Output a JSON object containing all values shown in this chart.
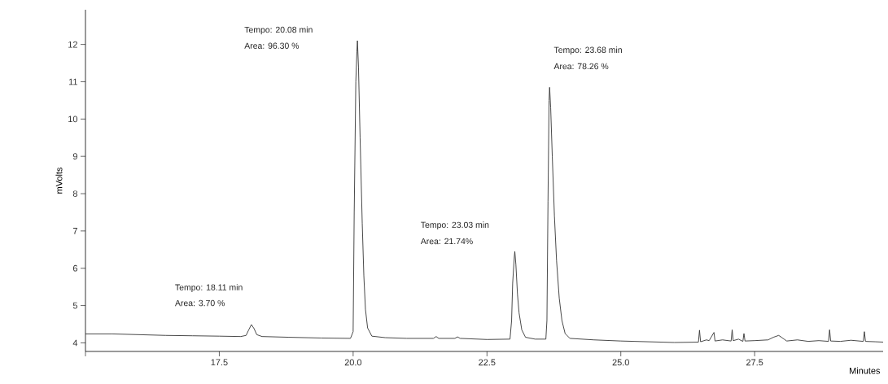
{
  "chart_data": {
    "type": "line",
    "xlabel": "Minutes",
    "ylabel": "mVolts",
    "color": "#333333",
    "x": [
      15.0,
      15.5,
      16.0,
      16.5,
      17.0,
      17.5,
      17.9,
      18.0,
      18.05,
      18.1,
      18.15,
      18.2,
      18.3,
      18.8,
      19.4,
      19.95,
      20.0,
      20.02,
      20.05,
      20.07,
      20.08,
      20.1,
      20.13,
      20.17,
      20.2,
      20.23,
      20.27,
      20.35,
      20.6,
      21.0,
      21.5,
      21.55,
      21.6,
      21.9,
      21.95,
      22.0,
      22.5,
      22.93,
      22.96,
      22.98,
      23.01,
      23.02,
      23.04,
      23.07,
      23.1,
      23.15,
      23.22,
      23.4,
      23.6,
      23.62,
      23.64,
      23.66,
      23.67,
      23.69,
      23.72,
      23.76,
      23.8,
      23.85,
      23.9,
      23.96,
      24.05,
      24.5,
      25.0,
      25.5,
      26.0,
      26.45,
      26.47,
      26.49,
      26.6,
      26.65,
      26.74,
      26.76,
      26.9,
      27.06,
      27.08,
      27.1,
      27.2,
      27.28,
      27.3,
      27.32,
      27.5,
      27.75,
      27.85,
      27.95,
      28.05,
      28.1,
      28.3,
      28.5,
      28.7,
      28.88,
      28.9,
      28.92,
      29.1,
      29.3,
      29.53,
      29.55,
      29.57,
      29.75,
      29.9
    ],
    "values": [
      4.24,
      4.24,
      4.22,
      4.2,
      4.19,
      4.18,
      4.17,
      4.2,
      4.35,
      4.49,
      4.38,
      4.22,
      4.17,
      4.15,
      4.13,
      4.12,
      4.3,
      7.5,
      11.0,
      11.8,
      12.1,
      11.4,
      9.5,
      7.2,
      5.8,
      4.9,
      4.4,
      4.18,
      4.14,
      4.12,
      4.12,
      4.17,
      4.12,
      4.12,
      4.16,
      4.12,
      4.09,
      4.1,
      4.6,
      5.6,
      6.3,
      6.45,
      6.1,
      5.3,
      4.8,
      4.35,
      4.15,
      4.1,
      4.1,
      4.6,
      7.8,
      10.5,
      10.85,
      10.3,
      9.0,
      7.4,
      6.2,
      5.2,
      4.6,
      4.25,
      4.12,
      4.08,
      4.05,
      4.03,
      4.01,
      4.02,
      4.34,
      4.03,
      4.08,
      4.06,
      4.28,
      4.05,
      4.08,
      4.05,
      4.35,
      4.06,
      4.1,
      4.04,
      4.25,
      4.05,
      4.06,
      4.08,
      4.15,
      4.2,
      4.1,
      4.05,
      4.08,
      4.04,
      4.06,
      4.04,
      4.35,
      4.05,
      4.04,
      4.07,
      4.04,
      4.3,
      4.04,
      4.03,
      4.02
    ],
    "xlim": [
      15.0,
      29.9
    ],
    "ylim": [
      3.77,
      12.93
    ],
    "xticks": [
      {
        "value": 15,
        "label": null
      },
      17.5,
      {
        "value": 20,
        "label": "20.0"
      },
      22.5,
      {
        "value": 25,
        "label": "25.0"
      },
      27.5
    ],
    "yticks": [
      4,
      5,
      6,
      7,
      8,
      9,
      10,
      11,
      12
    ],
    "annotations": [
      "Tempo: 18.11 min",
      "Area: 3.70 %",
      "Tempo: 20.08 min",
      "Area: 96.30 %",
      "Tempo: 23.03 min",
      "Area: 21.74%",
      "Tempo: 23.68 min",
      "Area: 78.26 %"
    ]
  }
}
